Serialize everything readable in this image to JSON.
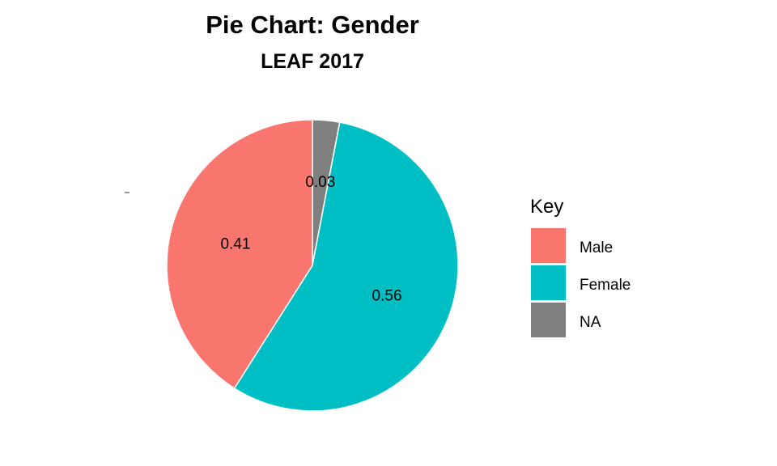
{
  "chart_data": {
    "type": "pie",
    "title": "Pie Chart: Gender",
    "subtitle": "LEAF 2017",
    "slices": [
      {
        "name": "Male",
        "value": 0.41,
        "label": "0.41",
        "color": "#F8766D"
      },
      {
        "name": "Female",
        "value": 0.56,
        "label": "0.56",
        "color": "#00BFC4"
      },
      {
        "name": "NA",
        "value": 0.03,
        "label": "0.03",
        "color": "#7F7F7F"
      }
    ],
    "legend": {
      "title": "Key",
      "placement": "right",
      "entries": [
        "Male",
        "Female",
        "NA"
      ]
    }
  }
}
